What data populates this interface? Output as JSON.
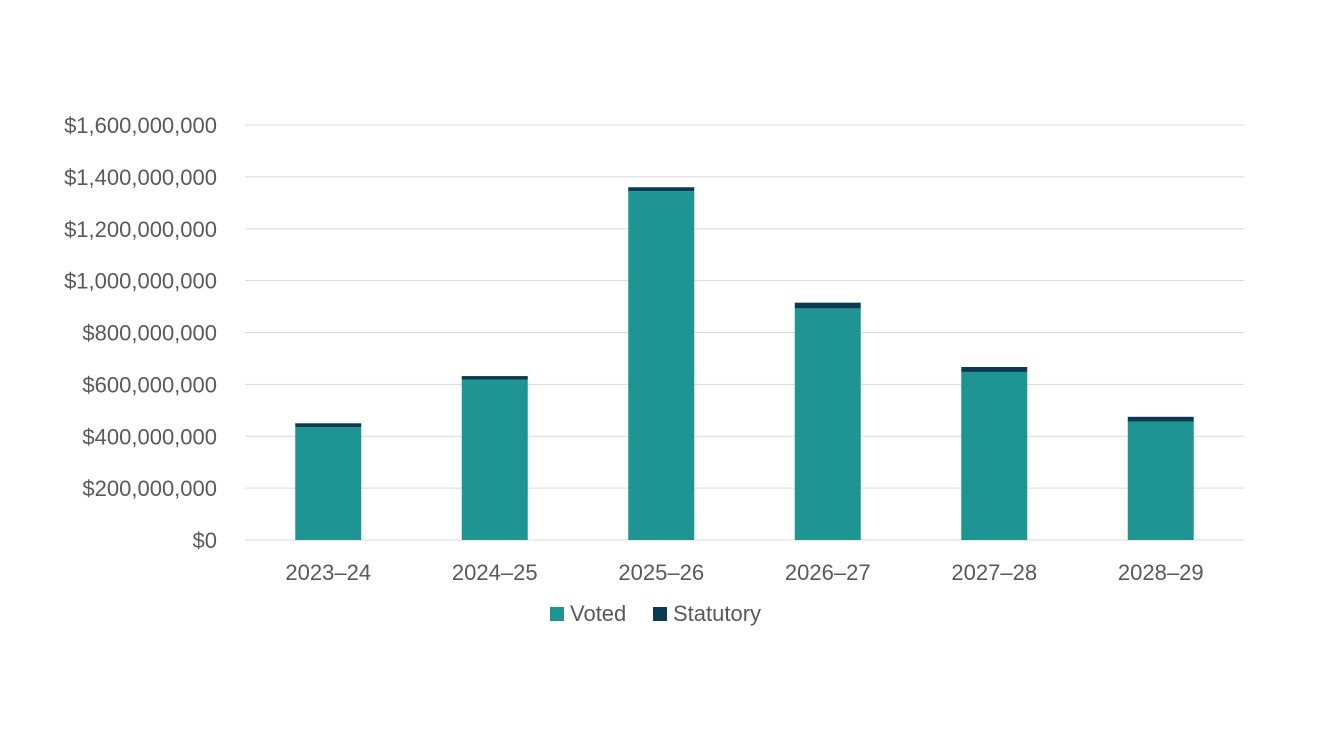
{
  "chart_data": {
    "type": "bar",
    "stacked": true,
    "categories": [
      "2023–24",
      "2024–25",
      "2025–26",
      "2026–27",
      "2027–28",
      "2028–29"
    ],
    "series": [
      {
        "name": "Voted",
        "color": "#1f9593",
        "values": [
          435000000,
          618000000,
          1345000000,
          893000000,
          648000000,
          457000000
        ]
      },
      {
        "name": "Statutory",
        "color": "#0b3a53",
        "values": [
          15000000,
          14000000,
          15000000,
          22000000,
          19000000,
          18000000
        ]
      }
    ],
    "ylim": [
      0,
      1600000000
    ],
    "y_ticks": [
      0,
      200000000,
      400000000,
      600000000,
      800000000,
      1000000000,
      1200000000,
      1400000000,
      1600000000
    ],
    "y_tick_labels": [
      "$0",
      "$200,000,000",
      "$400,000,000",
      "$600,000,000",
      "$800,000,000",
      "$1,000,000,000",
      "$1,200,000,000",
      "$1,400,000,000",
      "$1,600,000,000"
    ],
    "title": "",
    "xlabel": "",
    "ylabel": "",
    "grid": true,
    "legend_position": "bottom"
  }
}
